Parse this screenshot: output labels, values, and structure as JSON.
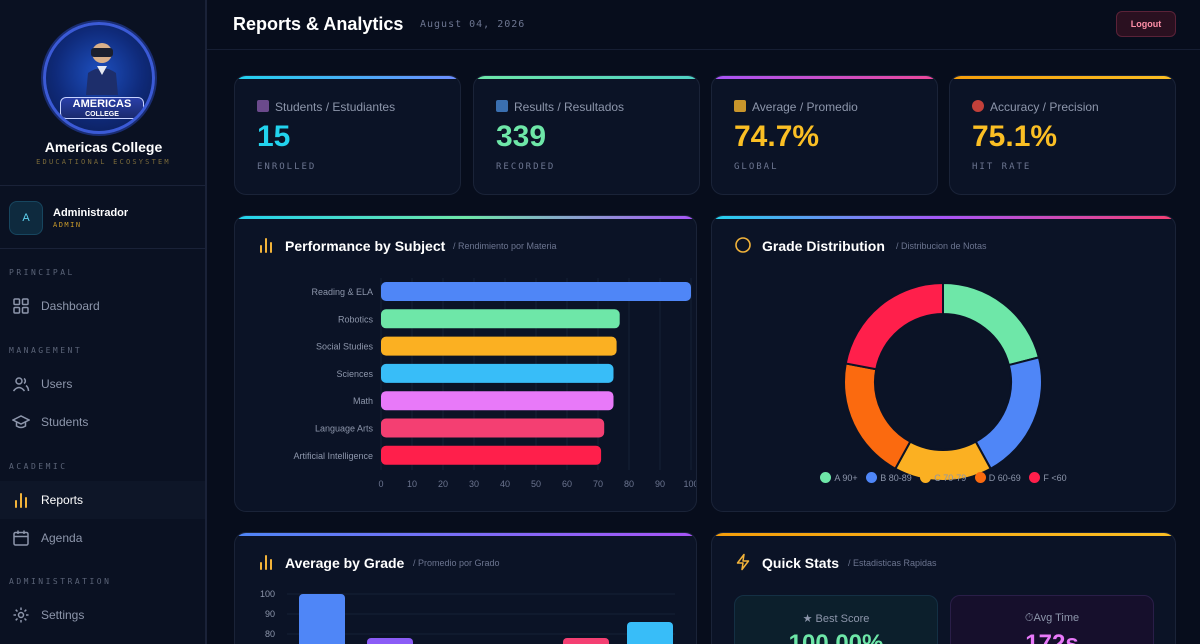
{
  "brand": {
    "name": "Americas College",
    "subtitle": "EDUCATIONAL ECOSYSTEM",
    "logo_line1": "AMERICAS",
    "logo_line2": "COLLEGE"
  },
  "user": {
    "initial": "A",
    "name": "Administrador",
    "role": "ADMIN"
  },
  "nav": {
    "sections": {
      "principal": "PRINCIPAL",
      "management": "MANAGEMENT",
      "academic": "ACADEMIC",
      "administration": "ADMINISTRATION"
    },
    "items": [
      {
        "label": "Dashboard",
        "icon": "grid-icon"
      },
      {
        "label": "Users",
        "icon": "users-icon"
      },
      {
        "label": "Students",
        "icon": "graduation-cap-icon"
      },
      {
        "label": "Reports",
        "icon": "bar-chart-icon",
        "active": true
      },
      {
        "label": "Agenda",
        "icon": "calendar-icon"
      },
      {
        "label": "Settings",
        "icon": "settings-icon"
      }
    ]
  },
  "header": {
    "title": "Reports & Analytics",
    "date": "August 04, 2026",
    "logout": "Logout"
  },
  "stats": [
    {
      "label": "Students / Estudiantes",
      "value": "15",
      "sub": "ENROLLED",
      "color": "#22d3ee",
      "icon": "graduation-cap-icon"
    },
    {
      "label": "Results / Resultados",
      "value": "339",
      "sub": "RECORDED",
      "color": "#6ee7a8",
      "icon": "bar-chart-icon"
    },
    {
      "label": "Average / Promedio",
      "value": "74.7%",
      "sub": "GLOBAL",
      "color": "#fbbf24",
      "icon": "trophy-icon"
    },
    {
      "label": "Accuracy / Precision",
      "value": "75.1%",
      "sub": "HIT RATE",
      "color": "#fbbf24",
      "icon": "target-icon"
    }
  ],
  "panels": {
    "subject": {
      "title": "Performance by Subject",
      "subtitle": "/ Rendimiento por Materia"
    },
    "grades": {
      "title": "Grade Distribution",
      "subtitle": "/ Distribucion de Notas"
    },
    "average": {
      "title": "Average by Grade",
      "subtitle": "/ Promedio por Grado"
    },
    "quick": {
      "title": "Quick Stats",
      "subtitle": "/ Estadisticas Rapidas"
    }
  },
  "quick_stats": [
    {
      "label": "Best Score",
      "value": "100.00%",
      "color": "#6ee7a8"
    },
    {
      "label": "Avg Time",
      "value": "172s",
      "color": "#e879f9"
    }
  ],
  "chart_data": [
    {
      "type": "bar",
      "orientation": "horizontal",
      "categories": [
        "Reading & ELA",
        "Robotics",
        "Social Studies",
        "Sciences",
        "Math",
        "Language Arts",
        "Artificial Intelligence"
      ],
      "values": [
        100,
        77,
        76,
        75,
        75,
        72,
        71
      ],
      "colors": [
        "#4f86f7",
        "#6ee7a8",
        "#fbb022",
        "#38bdf8",
        "#e879f9",
        "#f43f72",
        "#ff1f4b"
      ],
      "xlim": [
        0,
        100
      ],
      "xticks": [
        0,
        10,
        20,
        30,
        40,
        50,
        60,
        70,
        80,
        90,
        100
      ]
    },
    {
      "type": "pie",
      "donut": true,
      "categories": [
        "A 90+",
        "B 80-89",
        "C 70-79",
        "D 60-69",
        "F <60"
      ],
      "values": [
        21,
        21,
        16,
        20,
        22
      ],
      "colors": [
        "#6ee7a8",
        "#4f86f7",
        "#fbb022",
        "#fb6a0f",
        "#ff1f4b"
      ]
    },
    {
      "type": "bar",
      "yticks": [
        100,
        90,
        80
      ],
      "visible_bars": [
        {
          "value": 100,
          "color": "#4f86f7"
        },
        {
          "value": 78,
          "color": "#8b5cf6"
        },
        {
          "value": 78,
          "color": "#f43f72"
        },
        {
          "value": 86,
          "color": "#38bdf8"
        }
      ]
    }
  ]
}
